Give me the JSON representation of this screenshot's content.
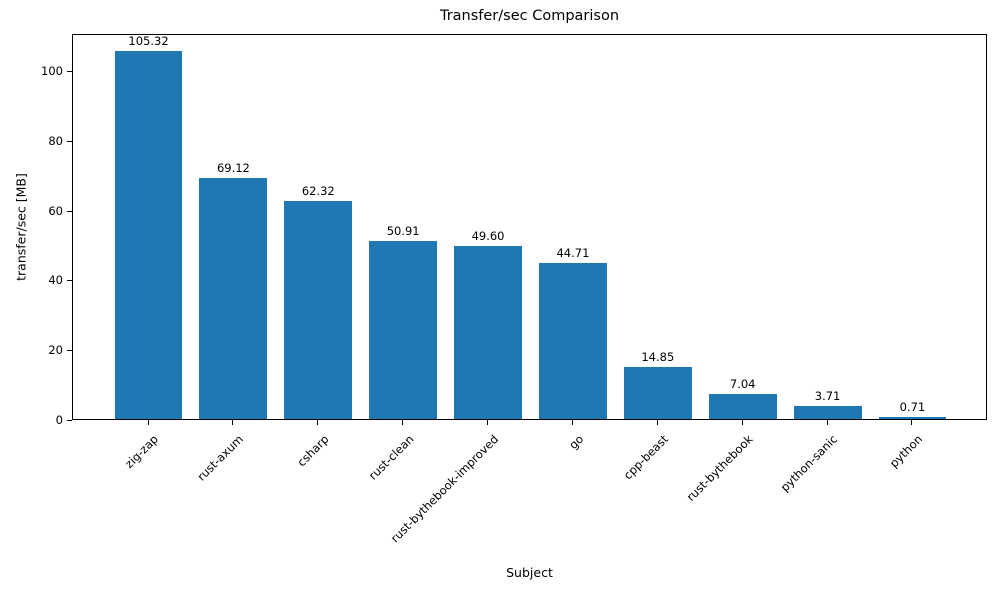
{
  "chart_data": {
    "type": "bar",
    "title": "Transfer/sec Comparison",
    "xlabel": "Subject",
    "ylabel": "transfer/sec [MB]",
    "categories": [
      "zig-zap",
      "rust-axum",
      "csharp",
      "rust-clean",
      "rust-bythebook-improved",
      "go",
      "cpp-beast",
      "rust-bythebook",
      "python-sanic",
      "python"
    ],
    "values": [
      105.32,
      69.12,
      62.32,
      50.91,
      49.6,
      44.71,
      14.85,
      7.04,
      3.71,
      0.71
    ],
    "value_labels": [
      "105.32",
      "69.12",
      "62.32",
      "50.91",
      "49.60",
      "44.71",
      "14.85",
      "7.04",
      "3.71",
      "0.71"
    ],
    "yticks": [
      0,
      20,
      40,
      60,
      80,
      100
    ],
    "ylim": [
      0,
      110.59
    ],
    "xlim": [
      -0.89,
      9.89
    ],
    "bar_width_units": 0.8,
    "bar_color": "#1f77b4",
    "grid": false,
    "legend_position": "none",
    "background_color": "#ffffff",
    "text_color": "#000000"
  }
}
